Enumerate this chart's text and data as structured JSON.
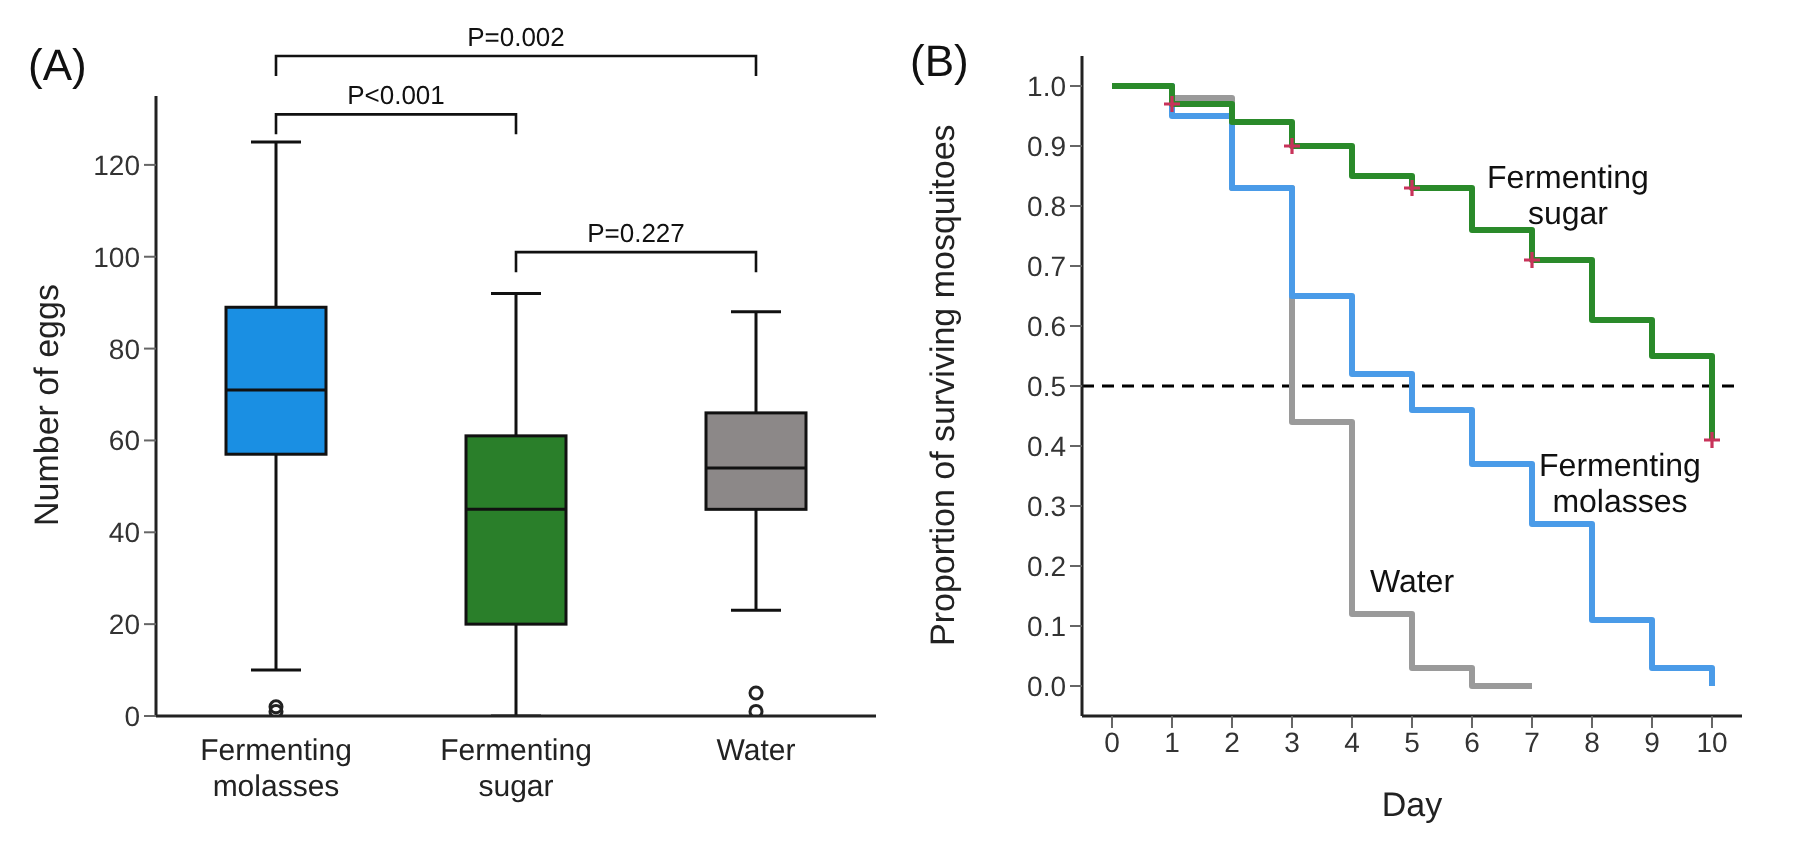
{
  "chart_data": [
    {
      "type": "box",
      "title": "(A)",
      "ylabel": "Number of eggs",
      "categories": [
        "Fermenting molasses",
        "Fermenting sugar",
        "Water"
      ],
      "colors": [
        "#1a8fe3",
        "#2a7f2a",
        "#8c8888"
      ],
      "boxes": [
        {
          "low": 10,
          "q1": 57,
          "median": 71,
          "q3": 89,
          "high": 125,
          "outliers": [
            1,
            2
          ]
        },
        {
          "low": 0,
          "q1": 20,
          "median": 45,
          "q3": 61,
          "high": 92
        },
        {
          "low": 23,
          "q1": 45,
          "median": 54,
          "q3": 66,
          "high": 88,
          "outliers": [
            1,
            5
          ]
        }
      ],
      "ylim": [
        0,
        135
      ],
      "yticks": [
        0,
        20,
        40,
        60,
        80,
        100,
        120
      ],
      "annotations": [
        "P=0.002",
        "P<0.001",
        "P=0.227"
      ]
    },
    {
      "type": "step",
      "title": "(B)",
      "xlabel": "Day",
      "ylabel": "Proportion of surviving mosquitoes",
      "xlim": [
        -0.5,
        10.5
      ],
      "xticks": [
        0,
        1,
        2,
        3,
        4,
        5,
        6,
        7,
        8,
        9,
        10
      ],
      "ylim": [
        -0.05,
        1.05
      ],
      "yticks": [
        {
          "value": 0,
          "label": "0.0"
        },
        {
          "value": 0.1,
          "label": "0.1"
        },
        {
          "value": 0.2,
          "label": "0.2"
        },
        {
          "value": 0.3,
          "label": "0.3"
        },
        {
          "value": 0.4,
          "label": "0.4"
        },
        {
          "value": 0.5,
          "label": "0.5"
        },
        {
          "value": 0.6,
          "label": "0.6"
        },
        {
          "value": 0.7,
          "label": "0.7"
        },
        {
          "value": 0.8,
          "label": "0.8"
        },
        {
          "value": 0.9,
          "label": "0.9"
        },
        {
          "value": 1,
          "label": "1.0"
        }
      ],
      "marker": "none",
      "ref_lines": [
        {
          "axis": "y",
          "value": 0.5,
          "color": "#000000",
          "line_style": "dashed"
        }
      ],
      "series": [
        {
          "name": "Fermenting sugar",
          "color": "#2a8a2a",
          "x": [
            0,
            1,
            2,
            3,
            4,
            5,
            6,
            7,
            8,
            9,
            10
          ],
          "values": [
            1,
            0.97,
            0.94,
            0.9,
            0.85,
            0.83,
            0.76,
            0.71,
            0.61,
            0.55,
            0.41
          ]
        },
        {
          "name": "Fermenting molasses",
          "color": "#4a9be8",
          "x": [
            0,
            1,
            2,
            3,
            4,
            5,
            6,
            7,
            8,
            9,
            10
          ],
          "values": [
            1,
            0.95,
            0.83,
            0.65,
            0.52,
            0.46,
            0.37,
            0.27,
            0.11,
            0.03,
            0
          ]
        },
        {
          "name": "Water",
          "color": "#9a9a9a",
          "x": [
            0,
            1,
            2,
            3,
            4,
            5,
            6,
            7
          ],
          "values": [
            1,
            0.98,
            0.83,
            0.44,
            0.12,
            0.03,
            0,
            0
          ]
        },
        {
          "type": "scatter",
          "marker": "cross",
          "color": "#c8335a",
          "x": [
            1,
            3,
            5,
            7,
            10
          ],
          "values": [
            0.97,
            0.9,
            0.83,
            0.71,
            0.41
          ]
        }
      ]
    }
  ]
}
